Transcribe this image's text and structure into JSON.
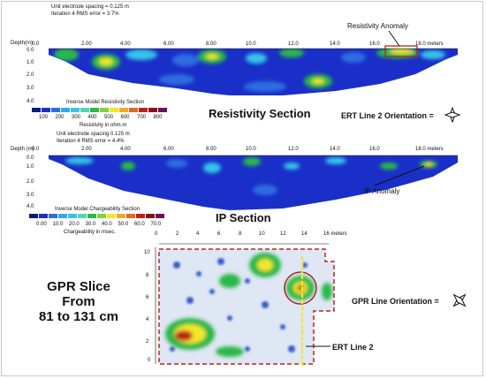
{
  "resistivity": {
    "spacing_text": "Unit electrode spacing = 0.125 m",
    "iteration_text": "Iteration 4 RMS error = 3.7%",
    "depth_label": "Depth(m)",
    "depth_ticks": [
      "0.0",
      "1.0",
      "2.0",
      "3.0",
      "4.0"
    ],
    "distance_ticks": [
      "0.0",
      "2.00",
      "4.00",
      "6.00",
      "8.00",
      "10.0",
      "12.0",
      "14.0",
      "16.0",
      "18.0 meters"
    ],
    "anomaly_label": "Resistivity Anomaly",
    "section_title": "Resistivity Section",
    "scale_title": "Inverse Model Resistivity Section",
    "scale_values": [
      "100",
      "200",
      "300",
      "400",
      "500",
      "600",
      "700",
      "800"
    ],
    "scale_unit": "Resistivity in ohm.m",
    "orientation_label": "ERT Line 2 Orientation ="
  },
  "ip": {
    "spacing_text": "Unit electrode spacing 0.125 m",
    "iteration_text": "Iteration 4 RMS error = 4.4%",
    "depth_label": "Depth (m)",
    "depth_ticks": [
      "0.0",
      "1.0",
      "2.0",
      "3.0",
      "4.0"
    ],
    "distance_ticks": [
      "0.0",
      "2.00",
      "4.00",
      "6.00",
      "8.00",
      "10.0",
      "12.0",
      "14.0",
      "16.0",
      "18.0 meters"
    ],
    "anomaly_label": "IP Anomaly",
    "section_title": "IP Section",
    "scale_title": "Inverse Model Chargeability Section",
    "scale_values": [
      "0.00",
      "10.0",
      "20.0",
      "30.0",
      "40.0",
      "50.0",
      "60.0",
      "70.0"
    ],
    "scale_unit": "Chargeability in msec."
  },
  "gpr": {
    "title_lines": [
      "GPR Slice",
      "From",
      "81 to 131 cm"
    ],
    "x_ticks": [
      "0",
      "2",
      "4",
      "6",
      "8",
      "10",
      "12",
      "14",
      "16 meters"
    ],
    "y_ticks": [
      "10",
      "8",
      "6",
      "4",
      "2",
      "0"
    ],
    "ert_line_label": "ERT Line 2",
    "orientation_label": "GPR Line Orientation ="
  },
  "colors": {
    "deep_blue": "#1a2fc8",
    "mid_blue": "#2f6de0",
    "cyan": "#35c4e8",
    "green": "#2cb84a",
    "yellow": "#f2e62a",
    "red": "#c02020",
    "anomaly_box": "#b0281e",
    "ert_line": "#f0e63a"
  }
}
